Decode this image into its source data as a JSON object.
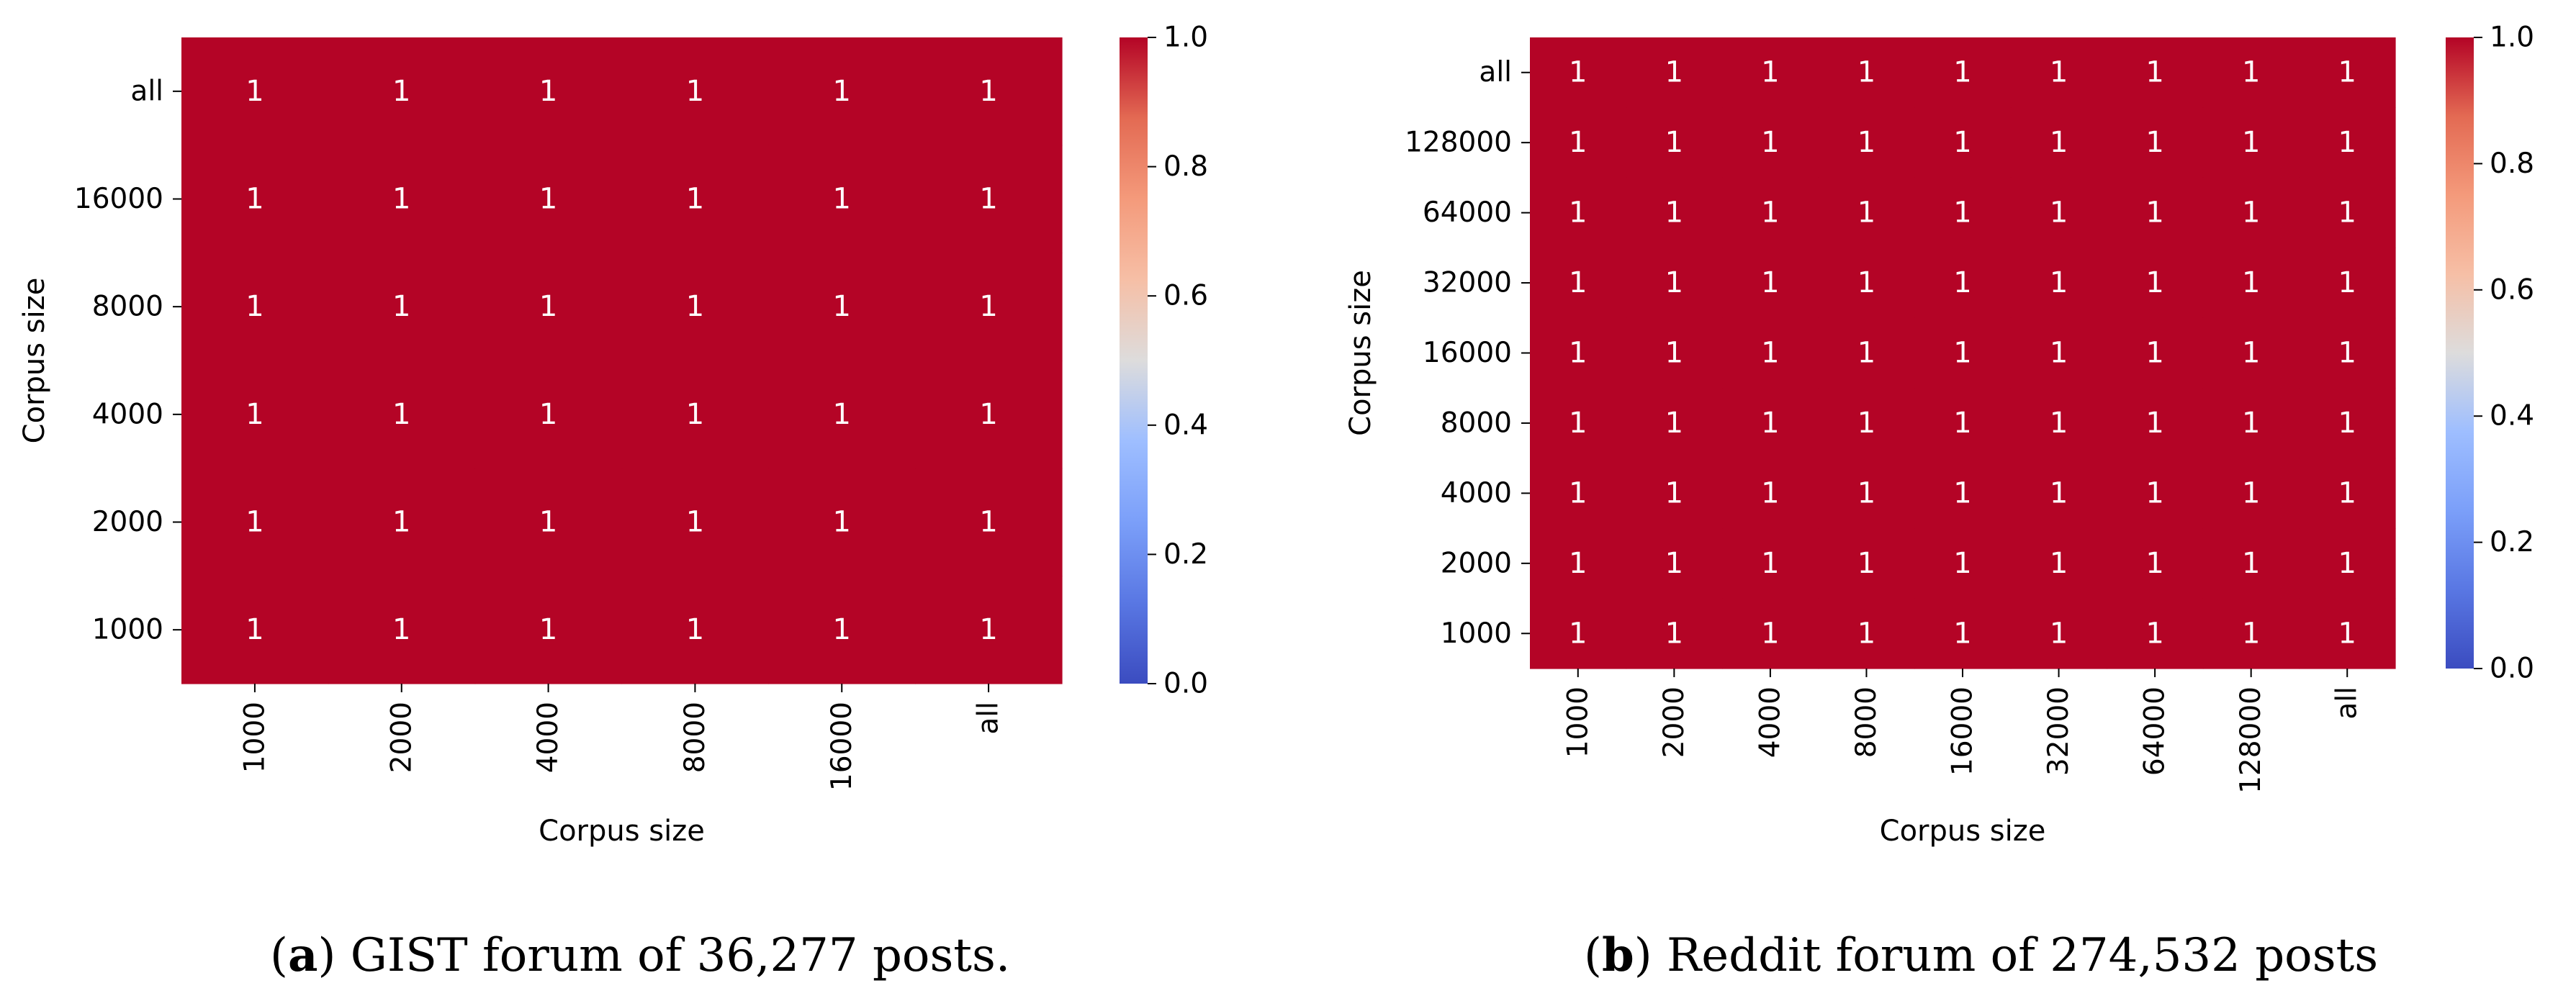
{
  "chart_data": [
    {
      "type": "heatmap",
      "x_categories": [
        "1000",
        "2000",
        "4000",
        "8000",
        "16000",
        "all"
      ],
      "y_categories": [
        "all",
        "16000",
        "8000",
        "4000",
        "2000",
        "1000"
      ],
      "values": [
        [
          1,
          1,
          1,
          1,
          1,
          1
        ],
        [
          1,
          1,
          1,
          1,
          1,
          1
        ],
        [
          1,
          1,
          1,
          1,
          1,
          1
        ],
        [
          1,
          1,
          1,
          1,
          1,
          1
        ],
        [
          1,
          1,
          1,
          1,
          1,
          1
        ],
        [
          1,
          1,
          1,
          1,
          1,
          1
        ]
      ],
      "xlabel": "Corpus size",
      "ylabel": "Corpus size",
      "colorbar": {
        "colormap": "coolwarm",
        "range": [
          0.0,
          1.0
        ],
        "ticks": [
          "0.0",
          "0.2",
          "0.4",
          "0.6",
          "0.8",
          "1.0"
        ]
      },
      "cell_color": "#b40426",
      "annotation_color": "#ffffff"
    },
    {
      "type": "heatmap",
      "x_categories": [
        "1000",
        "2000",
        "4000",
        "8000",
        "16000",
        "32000",
        "64000",
        "128000",
        "all"
      ],
      "y_categories": [
        "all",
        "128000",
        "64000",
        "32000",
        "16000",
        "8000",
        "4000",
        "2000",
        "1000"
      ],
      "values": [
        [
          1,
          1,
          1,
          1,
          1,
          1,
          1,
          1,
          1
        ],
        [
          1,
          1,
          1,
          1,
          1,
          1,
          1,
          1,
          1
        ],
        [
          1,
          1,
          1,
          1,
          1,
          1,
          1,
          1,
          1
        ],
        [
          1,
          1,
          1,
          1,
          1,
          1,
          1,
          1,
          1
        ],
        [
          1,
          1,
          1,
          1,
          1,
          1,
          1,
          1,
          1
        ],
        [
          1,
          1,
          1,
          1,
          1,
          1,
          1,
          1,
          1
        ],
        [
          1,
          1,
          1,
          1,
          1,
          1,
          1,
          1,
          1
        ],
        [
          1,
          1,
          1,
          1,
          1,
          1,
          1,
          1,
          1
        ],
        [
          1,
          1,
          1,
          1,
          1,
          1,
          1,
          1,
          1
        ]
      ],
      "xlabel": "Corpus size",
      "ylabel": "Corpus size",
      "colorbar": {
        "colormap": "coolwarm",
        "range": [
          0.0,
          1.0
        ],
        "ticks": [
          "0.0",
          "0.2",
          "0.4",
          "0.6",
          "0.8",
          "1.0"
        ]
      },
      "cell_color": "#b40426",
      "annotation_color": "#ffffff"
    }
  ],
  "captions": [
    {
      "letter": "a",
      "open": "(",
      "close": ")",
      "text": " GIST forum of 36,277 posts."
    },
    {
      "letter": "b",
      "open": "(",
      "close": ")",
      "text": " Reddit forum of 274,532 posts"
    }
  ]
}
